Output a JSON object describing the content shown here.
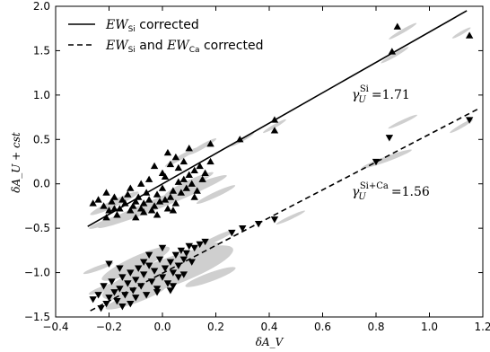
{
  "chart_data": {
    "type": "scatter",
    "xlabel": "δA_V",
    "ylabel": "δA_U + cst",
    "xlim": [
      -0.4,
      1.2
    ],
    "ylim": [
      -1.5,
      2.0
    ],
    "xticks": [
      "−0.4",
      "−0.2",
      "0.0",
      "0.2",
      "0.4",
      "0.6",
      "0.8",
      "1.0",
      "1.2"
    ],
    "yticks": [
      "2.0",
      "1.5",
      "1.0",
      "0.5",
      "0.0",
      "−0.5",
      "−1.0",
      "−1.5"
    ],
    "legend_position": "top-left",
    "legend": [
      {
        "label_main": "EW",
        "label_sub": "Si",
        "label_rest": " corrected",
        "style": "solid"
      },
      {
        "label_main": "EW",
        "label_sub": "Si",
        "label_mid": " and ",
        "label_main2": "EW",
        "label_sub2": "Ca",
        "label_rest": " corrected",
        "style": "dashed"
      }
    ],
    "annotations": [
      {
        "symbol": "γ",
        "sub": "U",
        "sup": "Si",
        "value": "=1.71"
      },
      {
        "symbol": "γ",
        "sub": "U",
        "sup": "Si+Ca",
        "value": "=1.56"
      }
    ],
    "fit_lines": [
      {
        "name": "EW_Si corrected",
        "style": "solid",
        "x": [
          -0.28,
          1.14
        ],
        "y": [
          -0.48,
          1.95
        ]
      },
      {
        "name": "EW_Si and EW_Ca corrected",
        "style": "dashed",
        "x": [
          -0.27,
          1.18
        ],
        "y": [
          -1.43,
          0.84
        ]
      }
    ],
    "series": [
      {
        "name": "EW_Si corrected",
        "marker": "triangle-up",
        "points": [
          [
            -0.26,
            -0.22
          ],
          [
            -0.24,
            -0.18
          ],
          [
            -0.22,
            -0.25
          ],
          [
            -0.21,
            -0.1
          ],
          [
            -0.2,
            -0.3
          ],
          [
            -0.19,
            -0.2
          ],
          [
            -0.18,
            -0.15
          ],
          [
            -0.17,
            -0.35
          ],
          [
            -0.16,
            -0.28
          ],
          [
            -0.15,
            -0.18
          ],
          [
            -0.14,
            -0.22
          ],
          [
            -0.13,
            -0.12
          ],
          [
            -0.12,
            -0.3
          ],
          [
            -0.11,
            -0.25
          ],
          [
            -0.1,
            -0.2
          ],
          [
            -0.1,
            -0.38
          ],
          [
            -0.09,
            -0.15
          ],
          [
            -0.08,
            -0.28
          ],
          [
            -0.07,
            -0.22
          ],
          [
            -0.06,
            -0.1
          ],
          [
            -0.05,
            -0.18
          ],
          [
            -0.04,
            -0.3
          ],
          [
            -0.03,
            -0.25
          ],
          [
            -0.02,
            -0.12
          ],
          [
            -0.01,
            -0.2
          ],
          [
            0.0,
            -0.05
          ],
          [
            0.01,
            -0.18
          ],
          [
            0.02,
            -0.28
          ],
          [
            0.03,
            -0.15
          ],
          [
            0.04,
            -0.08
          ],
          [
            0.05,
            -0.22
          ],
          [
            0.06,
            0.02
          ],
          [
            0.07,
            -0.1
          ],
          [
            0.08,
            0.05
          ],
          [
            0.09,
            -0.05
          ],
          [
            0.1,
            0.1
          ],
          [
            0.11,
            0.0
          ],
          [
            0.12,
            0.15
          ],
          [
            0.13,
            -0.08
          ],
          [
            0.14,
            0.2
          ],
          [
            0.16,
            0.12
          ],
          [
            0.18,
            0.45
          ],
          [
            0.18,
            0.25
          ],
          [
            -0.03,
            0.2
          ],
          [
            0.0,
            0.12
          ],
          [
            0.02,
            0.35
          ],
          [
            0.05,
            0.3
          ],
          [
            0.08,
            0.25
          ],
          [
            0.1,
            0.4
          ],
          [
            -0.05,
            0.05
          ],
          [
            -0.08,
            0.0
          ],
          [
            -0.12,
            -0.05
          ],
          [
            -0.18,
            -0.28
          ],
          [
            -0.21,
            -0.38
          ],
          [
            0.03,
            0.22
          ],
          [
            0.06,
            0.18
          ],
          [
            0.12,
            -0.15
          ],
          [
            0.15,
            0.05
          ],
          [
            -0.02,
            -0.35
          ],
          [
            0.01,
            0.08
          ],
          [
            0.29,
            0.5
          ],
          [
            0.42,
            0.72
          ],
          [
            0.42,
            0.6
          ],
          [
            0.86,
            1.49
          ],
          [
            0.88,
            1.77
          ],
          [
            1.15,
            1.67
          ],
          [
            -0.07,
            -0.32
          ],
          [
            0.04,
            -0.3
          ]
        ]
      },
      {
        "name": "EW_Si and EW_Ca corrected",
        "marker": "triangle-down",
        "points": [
          [
            -0.26,
            -1.3
          ],
          [
            -0.24,
            -1.25
          ],
          [
            -0.22,
            -1.15
          ],
          [
            -0.21,
            -1.35
          ],
          [
            -0.2,
            -1.28
          ],
          [
            -0.19,
            -1.1
          ],
          [
            -0.18,
            -1.22
          ],
          [
            -0.17,
            -1.32
          ],
          [
            -0.16,
            -1.18
          ],
          [
            -0.15,
            -1.05
          ],
          [
            -0.14,
            -1.25
          ],
          [
            -0.13,
            -1.12
          ],
          [
            -0.12,
            -1.0
          ],
          [
            -0.11,
            -1.2
          ],
          [
            -0.1,
            -1.08
          ],
          [
            -0.09,
            -0.95
          ],
          [
            -0.08,
            -1.15
          ],
          [
            -0.07,
            -1.02
          ],
          [
            -0.06,
            -1.25
          ],
          [
            -0.05,
            -0.92
          ],
          [
            -0.04,
            -1.1
          ],
          [
            -0.03,
            -0.98
          ],
          [
            -0.02,
            -1.18
          ],
          [
            -0.01,
            -0.85
          ],
          [
            0.0,
            -1.05
          ],
          [
            0.01,
            -0.95
          ],
          [
            0.02,
            -1.12
          ],
          [
            0.03,
            -0.88
          ],
          [
            0.04,
            -1.0
          ],
          [
            0.05,
            -0.8
          ],
          [
            0.06,
            -0.92
          ],
          [
            0.07,
            -0.75
          ],
          [
            0.08,
            -0.85
          ],
          [
            0.09,
            -0.78
          ],
          [
            0.1,
            -0.7
          ],
          [
            0.12,
            -0.72
          ],
          [
            0.14,
            -0.68
          ],
          [
            0.16,
            -0.65
          ],
          [
            -0.2,
            -0.9
          ],
          [
            -0.16,
            -0.95
          ],
          [
            -0.1,
            -1.28
          ],
          [
            -0.02,
            -1.22
          ],
          [
            0.04,
            -1.15
          ],
          [
            -0.23,
            -1.4
          ],
          [
            -0.15,
            -1.38
          ],
          [
            0.0,
            -0.72
          ],
          [
            -0.05,
            -0.8
          ],
          [
            0.03,
            -1.2
          ],
          [
            0.08,
            -1.02
          ],
          [
            0.11,
            -0.88
          ],
          [
            0.26,
            -0.55
          ],
          [
            0.3,
            -0.5
          ],
          [
            0.36,
            -0.45
          ],
          [
            0.42,
            -0.4
          ],
          [
            0.8,
            0.25
          ],
          [
            0.85,
            0.52
          ],
          [
            1.15,
            0.72
          ],
          [
            -0.12,
            -1.35
          ],
          [
            -0.07,
            -0.88
          ],
          [
            0.06,
            -1.05
          ]
        ]
      }
    ],
    "error_ellipses": [
      [
        0.0,
        -0.2,
        0.26,
        0.06,
        -22
      ],
      [
        -0.18,
        -0.22,
        0.1,
        0.04,
        -25
      ],
      [
        0.1,
        0.0,
        0.1,
        0.04,
        -25
      ],
      [
        0.2,
        -0.12,
        0.08,
        0.03,
        -25
      ],
      [
        0.15,
        0.42,
        0.06,
        0.025,
        -30
      ],
      [
        0.07,
        0.3,
        0.07,
        0.025,
        -30
      ],
      [
        -0.2,
        -0.42,
        0.08,
        0.03,
        -20
      ],
      [
        0.3,
        0.5,
        0.05,
        0.02,
        -30
      ],
      [
        0.42,
        0.65,
        0.05,
        0.02,
        -30
      ],
      [
        0.87,
        1.45,
        0.06,
        0.02,
        -30
      ],
      [
        0.9,
        1.72,
        0.06,
        0.02,
        -30
      ],
      [
        1.12,
        1.7,
        0.04,
        0.018,
        -30
      ],
      [
        0.48,
        -0.38,
        0.06,
        0.02,
        -25
      ],
      [
        0.02,
        -1.0,
        0.26,
        0.16,
        -20
      ],
      [
        -0.1,
        -0.9,
        0.14,
        0.08,
        -25
      ],
      [
        0.12,
        -0.8,
        0.1,
        0.06,
        -25
      ],
      [
        -0.1,
        -1.28,
        0.12,
        0.06,
        -20
      ],
      [
        0.18,
        -1.05,
        0.1,
        0.05,
        -20
      ],
      [
        -0.22,
        -1.18,
        0.06,
        0.03,
        -20
      ],
      [
        0.84,
        0.28,
        0.1,
        0.03,
        -20
      ],
      [
        0.9,
        0.7,
        0.06,
        0.02,
        -25
      ],
      [
        1.12,
        0.65,
        0.05,
        0.02,
        -30
      ],
      [
        0.2,
        -0.62,
        0.08,
        0.03,
        -25
      ],
      [
        -0.24,
        -0.95,
        0.06,
        0.025,
        -20
      ]
    ]
  }
}
